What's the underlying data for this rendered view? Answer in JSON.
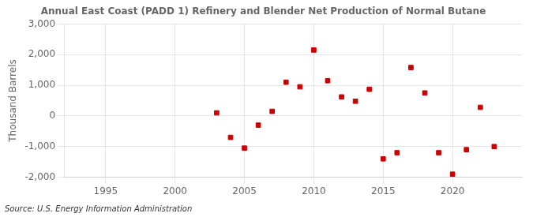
{
  "chart_data": {
    "type": "scatter",
    "title": "Annual East Coast (PADD 1) Refinery and Blender Net Production of Normal Butane",
    "ylabel": "Thousand Barrels",
    "source": "Source: U.S. Energy Information Administration",
    "x": [
      2003,
      2004,
      2005,
      2006,
      2007,
      2008,
      2009,
      2010,
      2011,
      2012,
      2013,
      2014,
      2015,
      2016,
      2017,
      2018,
      2019,
      2020,
      2021,
      2022,
      2023
    ],
    "values": [
      100,
      -700,
      -1050,
      -300,
      150,
      1100,
      950,
      2150,
      1150,
      620,
      480,
      870,
      -1400,
      -1200,
      1580,
      750,
      -1200,
      -1900,
      -1100,
      280,
      -1000
    ],
    "color": "#cc0000",
    "marker": "square",
    "xlim": [
      1992,
      2025
    ],
    "xticks": [
      1995,
      2000,
      2005,
      2010,
      2015,
      2020
    ],
    "ylim": [
      -2000,
      3000
    ],
    "yticks": [
      {
        "value": -2000,
        "label": "-2,000"
      },
      {
        "value": -1000,
        "label": "-1,000"
      },
      0,
      {
        "value": 1000,
        "label": "1,000"
      },
      {
        "value": 2000,
        "label": "2,000"
      },
      {
        "value": 3000,
        "label": "3,000"
      }
    ],
    "grid": true
  }
}
